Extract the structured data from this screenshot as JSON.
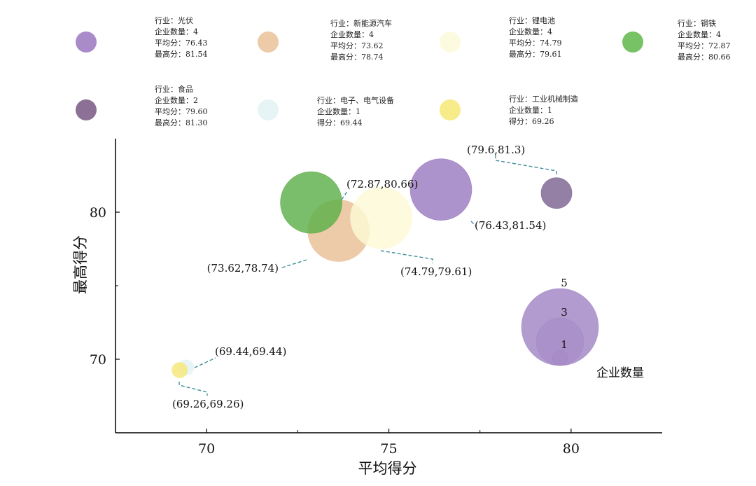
{
  "legend": [
    {
      "lines": [
        "行业：光伏",
        "企业数量：4",
        "平均分：76.43",
        "最高分：81.54"
      ],
      "color": "#a98bc9"
    },
    {
      "lines": [
        "行业：新能源汽车",
        "企业数量：4",
        "平均分：73.62",
        "最高分：78.74"
      ],
      "color": "#eecba8"
    },
    {
      "lines": [
        "行业：锂电池",
        "企业数量：4",
        "平均分：74.79",
        "最高分：79.61"
      ],
      "color": "#fdfbdf"
    },
    {
      "lines": [
        "行业：钢铁",
        "企业数量：4",
        "平均分：72.87",
        "最高分：80.66"
      ],
      "color": "#76c265"
    },
    {
      "lines": [
        "行业：食品",
        "企业数量：2",
        "平均分：79.60",
        "最高分：81.30"
      ],
      "color": "#8c7096"
    },
    {
      "lines": [
        "行业：电子、电气设备",
        "企业数量：1",
        "得分：69.44"
      ],
      "color": "#e6f4f6"
    },
    {
      "lines": [
        "行业：工业机械制造",
        "企业数量：1",
        "得分：69.26"
      ],
      "color": "#f8ec8a"
    }
  ],
  "chart_data": {
    "type": "scatter",
    "subtype": "bubble",
    "xlabel": "平均得分",
    "ylabel": "最高得分",
    "xlim": [
      67.5,
      82.5
    ],
    "ylim": [
      65,
      85
    ],
    "xticks": [
      70,
      75,
      80
    ],
    "yticks": [
      70,
      80
    ],
    "series": [
      {
        "name": "光伏",
        "x": 76.43,
        "y": 81.54,
        "size": 4,
        "color": "#9b7bbf",
        "label": "(76.43,81.54)"
      },
      {
        "name": "新能源汽车",
        "x": 73.62,
        "y": 78.74,
        "size": 4,
        "color": "#e9bf95",
        "label": "(73.62,78.74)"
      },
      {
        "name": "钢铁",
        "x": 72.87,
        "y": 80.66,
        "size": 4,
        "color": "#5db04a",
        "label": "(72.87,80.66)"
      },
      {
        "name": "锂电池",
        "x": 74.79,
        "y": 79.61,
        "size": 4,
        "color": "#fdf9d6",
        "label": "(74.79,79.61)"
      },
      {
        "name": "食品",
        "x": 79.6,
        "y": 81.3,
        "size": 2,
        "color": "#7d6490",
        "label": "(79.6,81.3)"
      },
      {
        "name": "电子、电气设备",
        "x": 69.44,
        "y": 69.44,
        "size": 1,
        "color": "#e3f2f4",
        "label": "(69.44,69.44)"
      },
      {
        "name": "工业机械制造",
        "x": 69.26,
        "y": 69.26,
        "size": 1,
        "color": "#f6e878",
        "label": "(69.26,69.26)"
      }
    ],
    "size_legend": {
      "title": "企业数量",
      "values": [
        5,
        3,
        1
      ],
      "color": "#a489c6"
    }
  }
}
